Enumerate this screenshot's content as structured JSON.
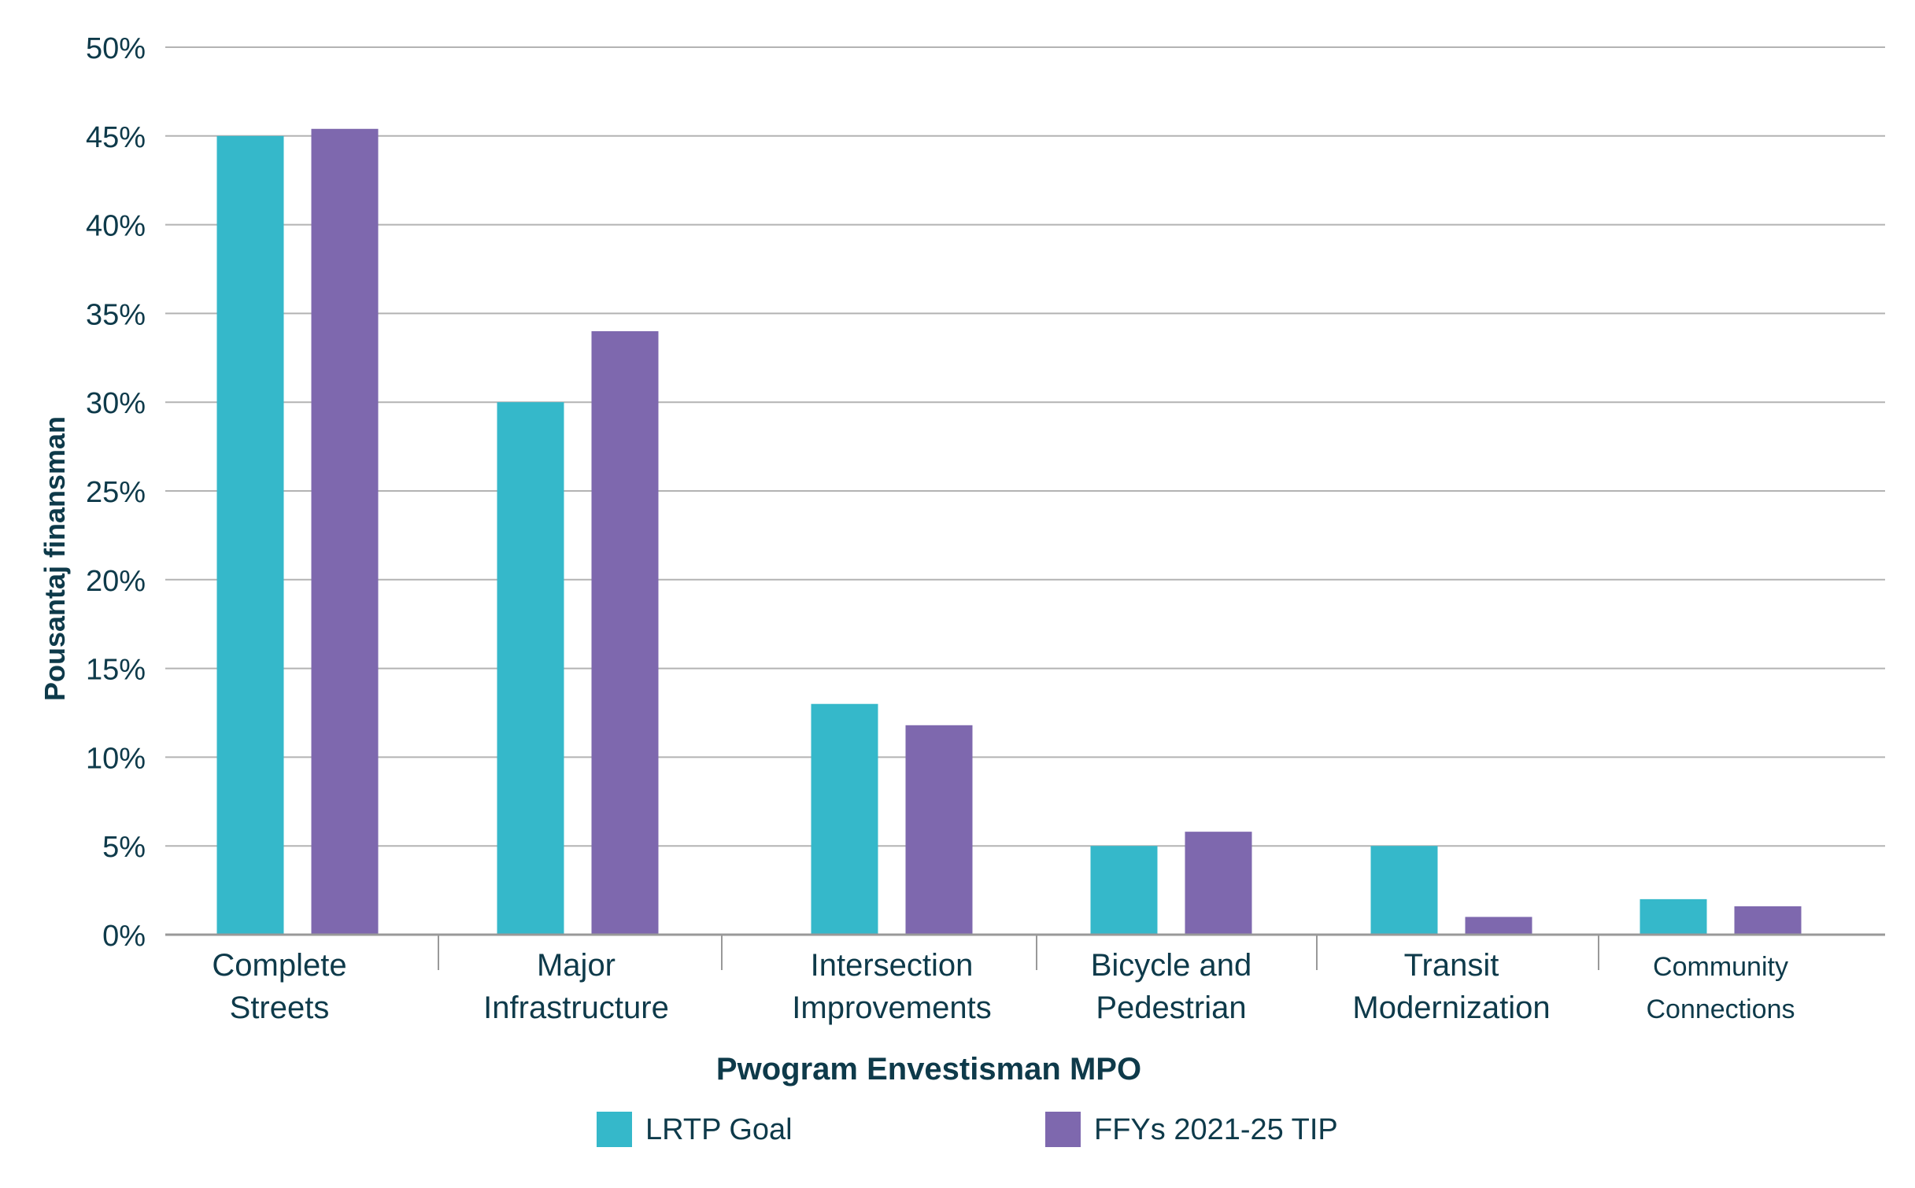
{
  "chart_data": {
    "type": "bar",
    "title": "",
    "xlabel": "Pwogram Envestisman MPO",
    "ylabel": "Pousantaj finansman",
    "ylim": [
      0,
      50
    ],
    "y_ticks": [
      "0%",
      "5%",
      "10%",
      "15%",
      "20%",
      "25%",
      "30%",
      "35%",
      "40%",
      "45%",
      "50%"
    ],
    "grid": true,
    "legend_position": "bottom",
    "categories": [
      [
        "Complete",
        "Streets"
      ],
      [
        "Major",
        "Infrastructure"
      ],
      [
        "Intersection",
        "Improvements"
      ],
      [
        "Bicycle and",
        "Pedestrian"
      ],
      [
        "Transit",
        "Modernization"
      ],
      [
        "Community",
        "Connections"
      ]
    ],
    "series": [
      {
        "name": "LRTP Goal",
        "color": "#35b8ca",
        "values": [
          45,
          30,
          13,
          5,
          5,
          2
        ]
      },
      {
        "name": "FFYs 2021-25 TIP",
        "color": "#7e68ae",
        "values": [
          45.4,
          34,
          11.8,
          5.8,
          1,
          1.6
        ]
      }
    ],
    "colors": {
      "text": "#0e3a4a",
      "grid": "#b3b3b3",
      "axis": "#999999"
    }
  }
}
